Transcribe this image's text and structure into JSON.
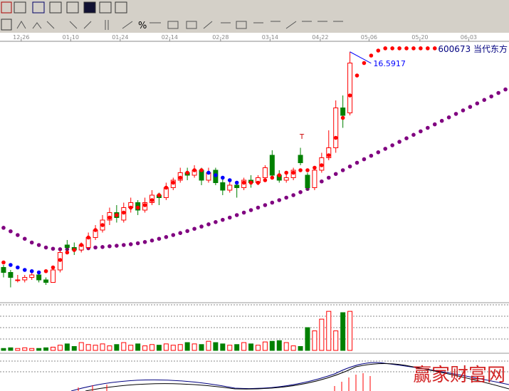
{
  "toolbar": {
    "percent_button": "%"
  },
  "chart_data": {
    "type": "candlestick",
    "title": "600673 当代东方",
    "annotations": [
      {
        "text": "16.5917",
        "value": 16.5917
      },
      {
        "text": "T"
      }
    ],
    "xticks": [
      {
        "value": 2.5,
        "label": "12-26"
      },
      {
        "value": 9.5,
        "label": "01-10"
      },
      {
        "value": 16.5,
        "label": "01-24"
      },
      {
        "value": 23.5,
        "label": "02-14"
      },
      {
        "value": 30.7,
        "label": "02-28"
      },
      {
        "value": 37.7,
        "label": "03-14"
      },
      {
        "value": 44.8,
        "label": "04-22"
      },
      {
        "value": 51.7,
        "label": "05-06"
      },
      {
        "value": 58.9,
        "label": "05-20"
      },
      {
        "value": 65.8,
        "label": "06-03"
      }
    ],
    "xlim": [
      -0.5,
      71.5
    ],
    "ylim": [
      7.1,
      17.7
    ],
    "up_color": "#ff0000",
    "down_color": "#008000",
    "candles": [
      [
        8.4,
        8.5,
        8.0,
        8.2
      ],
      [
        8.2,
        8.3,
        7.6,
        8.0
      ],
      [
        7.9,
        8.1,
        7.8,
        7.9
      ],
      [
        7.9,
        8.1,
        7.8,
        8.0
      ],
      [
        8.0,
        8.2,
        7.9,
        8.1
      ],
      [
        8.1,
        8.2,
        7.8,
        7.9
      ],
      [
        7.9,
        8.0,
        7.7,
        7.8
      ],
      [
        7.8,
        8.4,
        7.8,
        8.3
      ],
      [
        8.3,
        9.1,
        8.2,
        9.0
      ],
      [
        9.3,
        9.5,
        9.0,
        9.2
      ],
      [
        9.2,
        9.4,
        8.9,
        9.1
      ],
      [
        9.1,
        9.4,
        9.0,
        9.3
      ],
      [
        9.2,
        9.8,
        9.1,
        9.6
      ],
      [
        9.6,
        10.1,
        9.5,
        9.9
      ],
      [
        9.9,
        10.5,
        9.8,
        10.3
      ],
      [
        10.3,
        10.8,
        10.1,
        10.6
      ],
      [
        10.6,
        10.9,
        10.2,
        10.4
      ],
      [
        10.3,
        11.0,
        10.2,
        10.8
      ],
      [
        10.8,
        11.2,
        10.6,
        11.0
      ],
      [
        11.0,
        11.1,
        10.5,
        10.7
      ],
      [
        10.7,
        11.2,
        10.6,
        11.0
      ],
      [
        11.0,
        11.5,
        10.9,
        11.3
      ],
      [
        11.3,
        11.4,
        10.9,
        11.2
      ],
      [
        11.2,
        11.8,
        11.1,
        11.6
      ],
      [
        11.6,
        12.0,
        11.5,
        11.9
      ],
      [
        11.9,
        12.4,
        11.8,
        12.2
      ],
      [
        12.2,
        12.4,
        11.9,
        12.1
      ],
      [
        12.1,
        12.5,
        12.0,
        12.3
      ],
      [
        12.3,
        12.4,
        11.7,
        11.9
      ],
      [
        11.9,
        12.4,
        11.8,
        12.2
      ],
      [
        12.3,
        12.4,
        11.7,
        11.8
      ],
      [
        11.8,
        12.0,
        11.3,
        11.5
      ],
      [
        11.5,
        11.9,
        11.4,
        11.7
      ],
      [
        11.7,
        11.8,
        11.2,
        11.6
      ],
      [
        11.6,
        12.0,
        11.5,
        11.9
      ],
      [
        11.9,
        12.1,
        11.6,
        11.8
      ],
      [
        11.8,
        12.1,
        11.7,
        12.0
      ],
      [
        12.0,
        12.5,
        11.9,
        12.4
      ],
      [
        12.9,
        13.1,
        12.0,
        12.1
      ],
      [
        12.1,
        12.3,
        11.8,
        11.9
      ],
      [
        11.9,
        12.2,
        11.8,
        12.0
      ],
      [
        12.0,
        12.4,
        11.9,
        12.3
      ],
      [
        12.9,
        13.2,
        12.5,
        12.6
      ],
      [
        12.1,
        12.2,
        11.5,
        11.6
      ],
      [
        11.6,
        12.4,
        11.5,
        12.3
      ],
      [
        12.3,
        13.0,
        12.2,
        12.8
      ],
      [
        12.8,
        13.9,
        12.7,
        13.2
      ],
      [
        13.2,
        15.1,
        13.0,
        14.8
      ],
      [
        14.8,
        15.3,
        14.0,
        14.5
      ],
      [
        14.6,
        17.05,
        14.5,
        16.6
      ]
    ],
    "volume": [
      3,
      4,
      3,
      4,
      3,
      3,
      4,
      5,
      8,
      10,
      6,
      12,
      9,
      8,
      10,
      7,
      9,
      12,
      8,
      10,
      7,
      9,
      8,
      10,
      8,
      9,
      12,
      10,
      9,
      14,
      12,
      10,
      8,
      9,
      12,
      10,
      8,
      13,
      14,
      15,
      12,
      7,
      6,
      35,
      30,
      48,
      60,
      30,
      58,
      60
    ],
    "vlim": [
      0,
      70
    ],
    "ma_short": [
      8.6,
      8.5,
      8.4,
      8.3,
      8.25,
      8.2,
      8.25,
      8.4,
      8.7,
      9.0,
      9.1,
      9.3,
      9.6,
      9.9,
      10.1,
      10.4,
      10.5,
      10.6,
      10.8,
      10.8,
      10.9,
      11.1,
      11.3,
      11.6,
      11.8,
      12.0,
      12.2,
      12.3,
      12.3,
      12.2,
      12.1,
      12.0,
      11.9,
      11.8,
      11.8,
      11.8,
      11.8,
      11.9,
      12.0,
      12.1,
      12.2,
      12.2,
      12.3,
      12.3,
      12.4,
      12.5,
      12.9,
      13.6,
      14.4,
      15.3,
      16.1,
      16.6,
      16.9,
      17.1,
      17.19,
      17.19,
      17.19,
      17.19,
      17.19,
      17.19,
      17.19,
      17.19
    ],
    "ma_long": [
      9.99,
      9.85,
      9.7,
      9.55,
      9.4,
      9.3,
      9.2,
      9.15,
      9.13,
      9.13,
      9.13,
      9.15,
      9.17,
      9.2,
      9.22,
      9.25,
      9.27,
      9.3,
      9.33,
      9.37,
      9.42,
      9.48,
      9.55,
      9.62,
      9.7,
      9.78,
      9.86,
      9.95,
      10.04,
      10.13,
      10.22,
      10.31,
      10.4,
      10.5,
      10.6,
      10.7,
      10.8,
      10.9,
      11.0,
      11.1,
      11.2,
      11.3,
      11.42,
      11.55,
      11.7,
      11.85,
      12.0,
      12.15,
      12.3,
      12.45,
      12.6,
      12.74,
      12.88,
      13.02,
      13.16,
      13.3,
      13.44,
      13.58,
      13.72,
      13.86,
      14.0,
      14.14,
      14.28,
      14.42,
      14.56,
      14.7,
      14.84,
      14.98,
      15.12,
      15.26,
      15.4,
      15.54
    ],
    "ma_up_color": "#ff0000",
    "ma_down_color": "#0000ff",
    "ma_long_color": "#800080",
    "watermark": "赢家财富网"
  }
}
